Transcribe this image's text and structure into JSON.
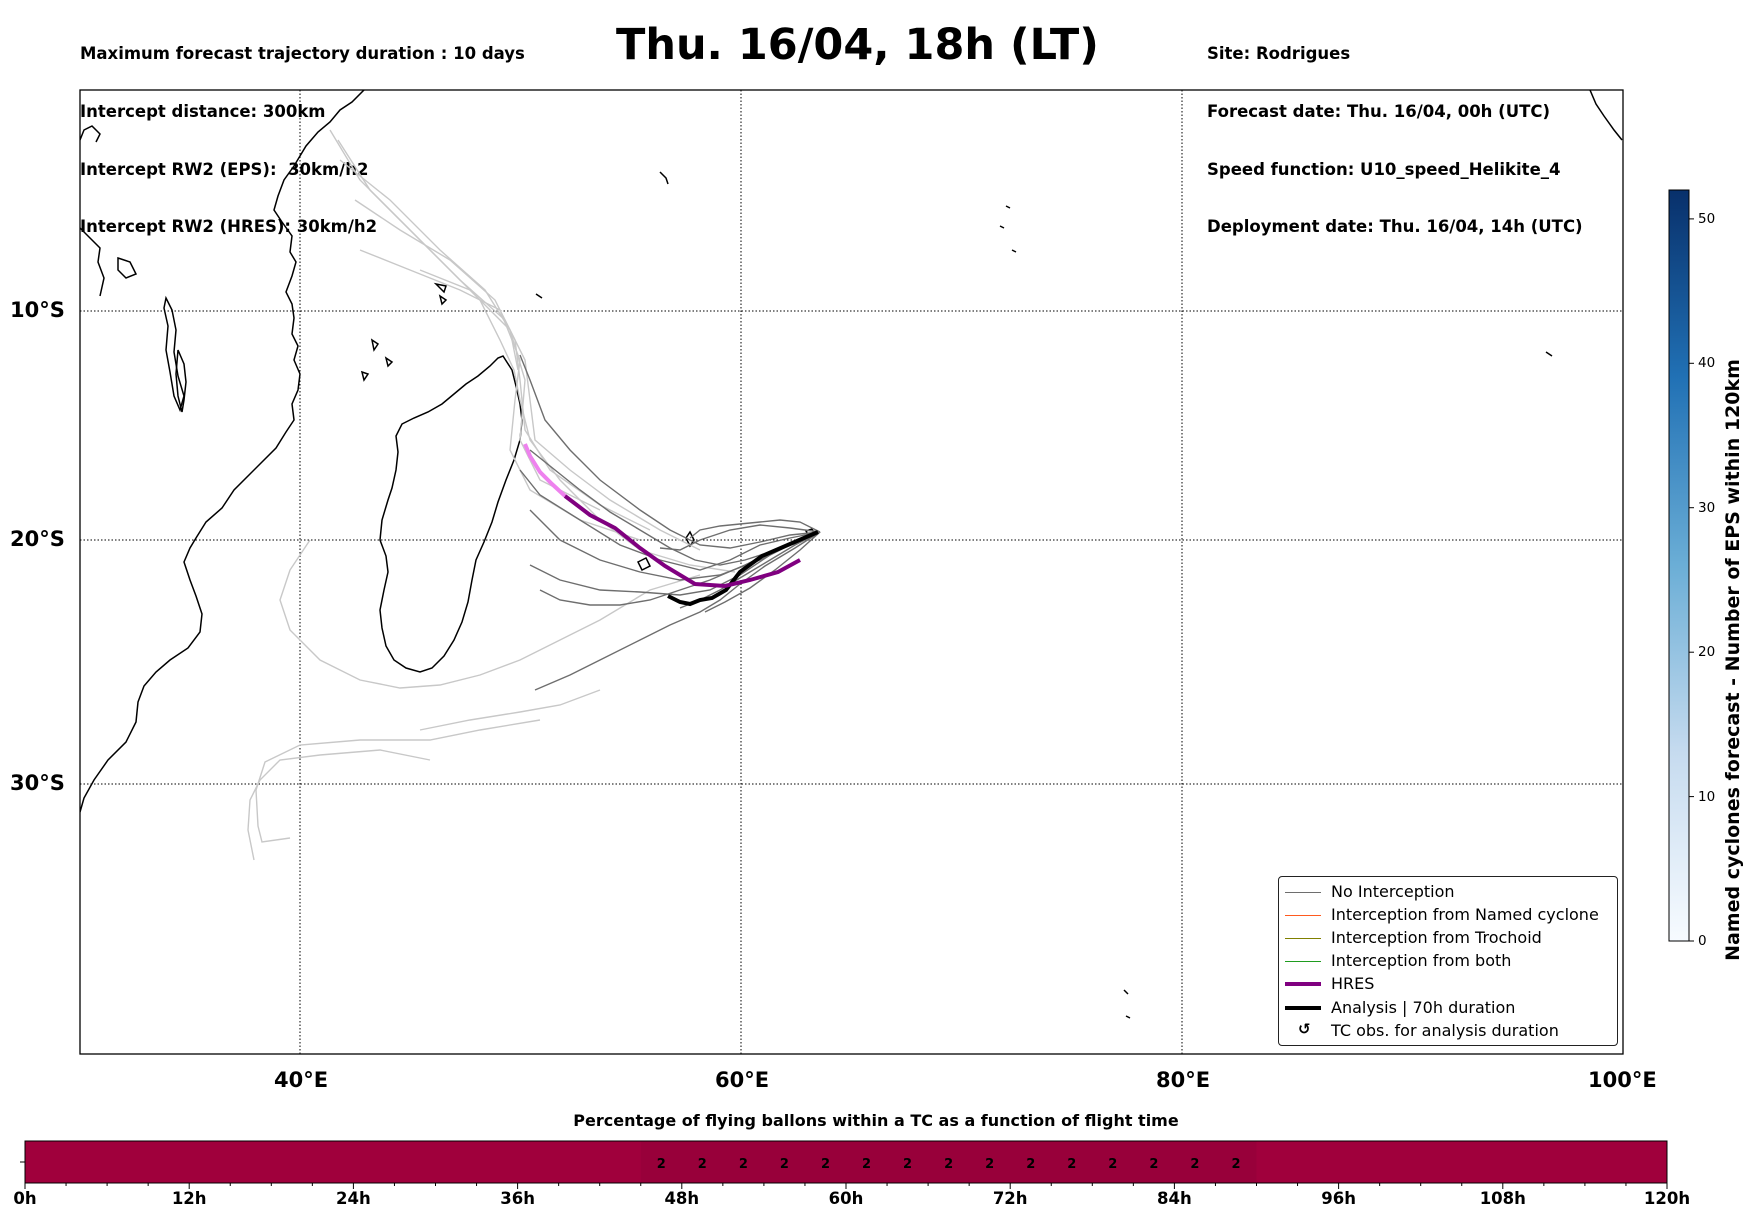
{
  "header": {
    "left_lines": [
      "Maximum forecast trajectory duration : 10 days",
      "Intercept distance: 300km",
      "Intercept RW2 (EPS):  30km/h2",
      "Intercept RW2 (HRES): 30km/h2"
    ],
    "title": "Thu. 16/04, 18h (LT)",
    "right_lines": [
      "Site: Rodrigues",
      "Forecast date: Thu. 16/04, 00h (UTC)",
      "Speed function: U10_speed_Helikite_4",
      "Deployment date: Thu. 16/04, 14h (UTC)"
    ]
  },
  "map": {
    "lat_labels": [
      "10°S",
      "20°S",
      "30°S"
    ],
    "lon_labels": [
      "40°E",
      "60°E",
      "80°E",
      "100°E"
    ]
  },
  "legend": {
    "items": [
      {
        "label": "No Interception",
        "color": "#6e6e6e"
      },
      {
        "label": "Interception from Named cyclone",
        "color": "#ff5a1f"
      },
      {
        "label": "Interception from Trochoid",
        "color": "#808000"
      },
      {
        "label": "Interception from both",
        "color": "#1f9c1f"
      },
      {
        "label": "HRES",
        "color": "#800080"
      },
      {
        "label": "Analysis | 70h duration",
        "color": "#000000"
      },
      {
        "label": "TC obs. for analysis duration",
        "symbol": "↺"
      }
    ]
  },
  "colorbar": {
    "label": "Named cyclones forecast - Number of EPS within 120km",
    "ticks": [
      "0",
      "10",
      "20",
      "30",
      "40",
      "50"
    ],
    "min": 0,
    "max": 52,
    "colors": [
      "#f7fbff",
      "#08306b"
    ]
  },
  "timeline": {
    "title": "Percentage of flying ballons within a TC as a function of flight time",
    "labels": [
      "0h",
      "12h",
      "24h",
      "36h",
      "48h",
      "60h",
      "72h",
      "84h",
      "96h",
      "108h",
      "120h"
    ],
    "cell_values": [
      "2",
      "2",
      "2",
      "2",
      "2",
      "2",
      "2",
      "2",
      "2",
      "2",
      "2",
      "2",
      "2",
      "2",
      "2"
    ],
    "highlight_start_h": 45,
    "highlight_end_h": 90,
    "base_color": "#a0003c",
    "highlight_color": "#98003a"
  }
}
